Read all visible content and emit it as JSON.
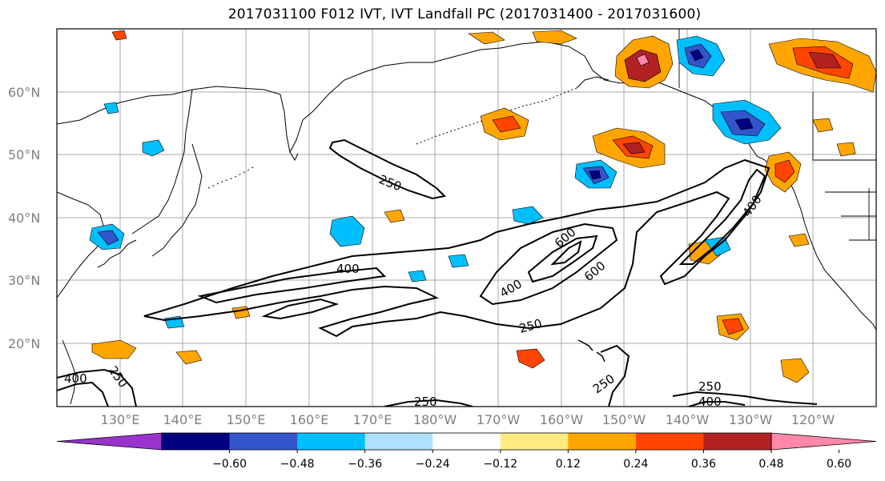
{
  "title": "2017031100 F012 IVT, IVT Landfall PC (2017031400 - 2017031600)",
  "lat_labels": [
    "60°N",
    "50°N",
    "40°N",
    "30°N",
    "20°N"
  ],
  "lon_labels": [
    "130°E",
    "140°E",
    "150°E",
    "160°E",
    "170°E",
    "180°W",
    "170°W",
    "160°W",
    "150°W",
    "140°W",
    "130°W",
    "120°W"
  ],
  "contour_labels": [
    {
      "id": "c250a",
      "text": "250"
    },
    {
      "id": "c400a",
      "text": "400"
    },
    {
      "id": "c400b",
      "text": "400"
    },
    {
      "id": "c600a",
      "text": "600"
    },
    {
      "id": "c600b",
      "text": "600"
    },
    {
      "id": "c250b",
      "text": "250"
    },
    {
      "id": "c400c",
      "text": "400"
    },
    {
      "id": "c250c",
      "text": "250"
    },
    {
      "id": "c250d",
      "text": "250"
    },
    {
      "id": "c400d",
      "text": "400"
    },
    {
      "id": "c250e",
      "text": "250"
    },
    {
      "id": "c400e",
      "text": "400"
    },
    {
      "id": "c250f",
      "text": "250"
    }
  ],
  "colorbar": {
    "tick_labels": [
      "−0.60",
      "−0.48",
      "−0.36",
      "−0.24",
      "−0.12",
      "0.12",
      "0.24",
      "0.36",
      "0.48",
      "0.60"
    ],
    "colors": [
      "#9933cc",
      "#000080",
      "#3355cc",
      "#00bfff",
      "#b0e0ff",
      "#ffffff",
      "#ffeb80",
      "#ffa500",
      "#ff4500",
      "#b22222",
      "#ff88aa"
    ]
  }
}
